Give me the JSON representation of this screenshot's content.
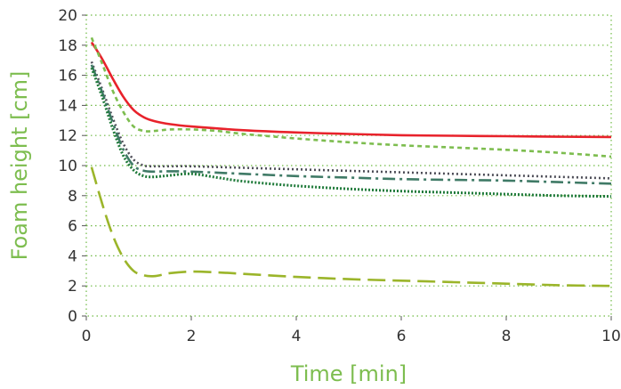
{
  "chart_data": {
    "type": "line",
    "title": "",
    "xlabel": "Time [min]",
    "ylabel": "Foam height [cm]",
    "xlim": [
      0,
      10
    ],
    "ylim": [
      0,
      20
    ],
    "x_ticks": [
      0,
      2,
      4,
      6,
      8,
      10
    ],
    "y_ticks": [
      0,
      2,
      4,
      6,
      8,
      10,
      12,
      14,
      16,
      18,
      20
    ],
    "grid": true,
    "legend": "none",
    "colors": {
      "label": "#7dbd4f",
      "grid": "#6fba44",
      "tick": "#333333"
    },
    "series": [
      {
        "color": "#e8222b",
        "style": "solid",
        "points": [
          [
            0.1,
            18.2
          ],
          [
            0.3,
            17.1
          ],
          [
            0.5,
            15.8
          ],
          [
            0.7,
            14.6
          ],
          [
            0.9,
            13.7
          ],
          [
            1.1,
            13.2
          ],
          [
            1.3,
            12.95
          ],
          [
            1.6,
            12.75
          ],
          [
            2,
            12.6
          ],
          [
            3,
            12.35
          ],
          [
            4,
            12.2
          ],
          [
            5,
            12.1
          ],
          [
            6,
            12.02
          ],
          [
            7,
            11.98
          ],
          [
            8,
            11.95
          ],
          [
            9,
            11.92
          ],
          [
            10,
            11.9
          ]
        ]
      },
      {
        "color": "#7dbd4f",
        "style": "short-dash",
        "points": [
          [
            0.1,
            18.5
          ],
          [
            0.3,
            16.8
          ],
          [
            0.5,
            15.0
          ],
          [
            0.7,
            13.6
          ],
          [
            0.9,
            12.6
          ],
          [
            1.1,
            12.3
          ],
          [
            1.3,
            12.3
          ],
          [
            1.6,
            12.4
          ],
          [
            2,
            12.4
          ],
          [
            2.5,
            12.3
          ],
          [
            3,
            12.1
          ],
          [
            4,
            11.8
          ],
          [
            5,
            11.55
          ],
          [
            6,
            11.35
          ],
          [
            7,
            11.2
          ],
          [
            8,
            11.05
          ],
          [
            9,
            10.85
          ],
          [
            10,
            10.6
          ]
        ]
      },
      {
        "color": "#4e4e58",
        "style": "dotted",
        "points": [
          [
            0.1,
            16.9
          ],
          [
            0.3,
            15.1
          ],
          [
            0.5,
            13.2
          ],
          [
            0.7,
            11.5
          ],
          [
            0.9,
            10.4
          ],
          [
            1.1,
            10.0
          ],
          [
            1.3,
            9.95
          ],
          [
            1.6,
            9.95
          ],
          [
            2,
            9.95
          ],
          [
            3,
            9.85
          ],
          [
            4,
            9.75
          ],
          [
            5,
            9.65
          ],
          [
            6,
            9.55
          ],
          [
            7,
            9.45
          ],
          [
            8,
            9.35
          ],
          [
            9,
            9.25
          ],
          [
            10,
            9.15
          ]
        ]
      },
      {
        "color": "#3f7a66",
        "style": "dash-dot",
        "points": [
          [
            0.1,
            16.7
          ],
          [
            0.3,
            14.9
          ],
          [
            0.5,
            12.9
          ],
          [
            0.7,
            11.1
          ],
          [
            0.9,
            10.0
          ],
          [
            1.1,
            9.65
          ],
          [
            1.3,
            9.6
          ],
          [
            1.6,
            9.62
          ],
          [
            2,
            9.6
          ],
          [
            3,
            9.45
          ],
          [
            4,
            9.3
          ],
          [
            5,
            9.2
          ],
          [
            6,
            9.1
          ],
          [
            7,
            9.05
          ],
          [
            8,
            9.0
          ],
          [
            9,
            8.9
          ],
          [
            10,
            8.8
          ]
        ]
      },
      {
        "color": "#1f7a3a",
        "style": "dense-dot",
        "points": [
          [
            0.1,
            16.5
          ],
          [
            0.3,
            14.6
          ],
          [
            0.5,
            12.5
          ],
          [
            0.7,
            10.7
          ],
          [
            0.9,
            9.7
          ],
          [
            1.1,
            9.3
          ],
          [
            1.3,
            9.25
          ],
          [
            1.6,
            9.35
          ],
          [
            2,
            9.45
          ],
          [
            2.5,
            9.2
          ],
          [
            3,
            8.95
          ],
          [
            4,
            8.65
          ],
          [
            5,
            8.45
          ],
          [
            6,
            8.3
          ],
          [
            7,
            8.2
          ],
          [
            8,
            8.1
          ],
          [
            9,
            8.0
          ],
          [
            10,
            7.95
          ]
        ]
      },
      {
        "color": "#9bb52a",
        "style": "long-dash",
        "points": [
          [
            0.1,
            9.9
          ],
          [
            0.3,
            7.5
          ],
          [
            0.5,
            5.4
          ],
          [
            0.7,
            3.9
          ],
          [
            0.9,
            3.0
          ],
          [
            1.1,
            2.7
          ],
          [
            1.3,
            2.65
          ],
          [
            1.6,
            2.85
          ],
          [
            2,
            2.95
          ],
          [
            2.5,
            2.9
          ],
          [
            3,
            2.8
          ],
          [
            4,
            2.6
          ],
          [
            5,
            2.45
          ],
          [
            6,
            2.35
          ],
          [
            7,
            2.25
          ],
          [
            8,
            2.15
          ],
          [
            9,
            2.05
          ],
          [
            10,
            2.0
          ]
        ]
      }
    ]
  }
}
